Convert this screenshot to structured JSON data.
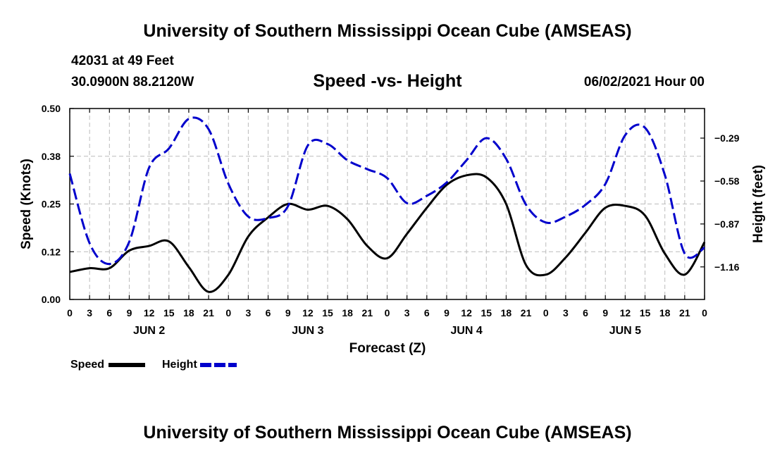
{
  "header": {
    "title": "University of Southern Mississippi Ocean Cube (AMSEAS)",
    "station_line": "42031 at 49 Feet",
    "coords_line": "30.0900N  88.2120W",
    "chart_title": "Speed -vs- Height",
    "date_line": "06/02/2021 Hour 00"
  },
  "footer": {
    "title": "University of Southern Mississippi Ocean Cube (AMSEAS)"
  },
  "legend": {
    "speed_label": "Speed",
    "height_label": "Height"
  },
  "colors": {
    "speed": "#000000",
    "height": "#0000cc",
    "grid": "#bbbbbb"
  },
  "chart_data": {
    "type": "line",
    "title": "Speed -vs- Height",
    "xlabel": "Forecast (Z)",
    "ylabel": "Speed (Knots)",
    "y2label": "Height (feet)",
    "xlim": [
      0,
      96
    ],
    "ylim": [
      0,
      0.5
    ],
    "y2lim": [
      -1.38,
      -0.09
    ],
    "x_ticks": [
      0,
      3,
      6,
      9,
      12,
      15,
      18,
      21,
      24,
      27,
      30,
      33,
      36,
      39,
      42,
      45,
      48,
      51,
      54,
      57,
      60,
      63,
      66,
      69,
      72,
      75,
      78,
      81,
      84,
      87,
      90,
      93,
      96
    ],
    "x_tick_labels": [
      "0",
      "3",
      "6",
      "9",
      "12",
      "15",
      "18",
      "21",
      "0",
      "3",
      "6",
      "9",
      "12",
      "15",
      "18",
      "21",
      "0",
      "3",
      "6",
      "9",
      "12",
      "15",
      "18",
      "21",
      "0",
      "3",
      "6",
      "9",
      "12",
      "15",
      "18",
      "21",
      "0"
    ],
    "day_labels": [
      {
        "x": 12,
        "label": "JUN 2"
      },
      {
        "x": 36,
        "label": "JUN 3"
      },
      {
        "x": 60,
        "label": "JUN 4"
      },
      {
        "x": 84,
        "label": "JUN 5"
      }
    ],
    "y_ticks": [
      0,
      0.125,
      0.25,
      0.375,
      0.5
    ],
    "y_tick_labels": [
      "0.00",
      "0.12",
      "0.25",
      "0.38",
      "0.50"
    ],
    "y2_ticks": [
      -1.16,
      -0.87,
      -0.58,
      -0.29
    ],
    "y2_tick_labels": [
      "-1.16",
      "-0.87",
      "-0.58",
      "-0.29"
    ],
    "series": [
      {
        "name": "Speed",
        "axis": "left",
        "x": [
          0,
          3,
          6,
          9,
          12,
          15,
          18,
          21,
          24,
          27,
          30,
          33,
          36,
          39,
          42,
          45,
          48,
          51,
          54,
          57,
          60,
          63,
          66,
          69,
          72,
          75,
          78,
          81,
          84,
          87,
          90,
          93,
          96
        ],
        "values": [
          0.072,
          0.082,
          0.082,
          0.128,
          0.14,
          0.152,
          0.085,
          0.02,
          0.065,
          0.165,
          0.215,
          0.25,
          0.235,
          0.245,
          0.21,
          0.14,
          0.108,
          0.172,
          0.24,
          0.3,
          0.325,
          0.32,
          0.25,
          0.09,
          0.065,
          0.11,
          0.175,
          0.24,
          0.245,
          0.22,
          0.12,
          0.065,
          0.15
        ]
      },
      {
        "name": "Height",
        "axis": "right",
        "x": [
          0,
          3,
          6,
          9,
          12,
          15,
          18,
          21,
          24,
          27,
          30,
          33,
          36,
          39,
          42,
          45,
          48,
          51,
          54,
          57,
          60,
          63,
          66,
          69,
          72,
          75,
          78,
          81,
          84,
          87,
          90,
          93,
          96
        ],
        "values": [
          -0.53,
          -1.0,
          -1.14,
          -0.99,
          -0.49,
          -0.36,
          -0.16,
          -0.23,
          -0.6,
          -0.82,
          -0.83,
          -0.75,
          -0.34,
          -0.33,
          -0.44,
          -0.5,
          -0.56,
          -0.73,
          -0.68,
          -0.59,
          -0.44,
          -0.29,
          -0.43,
          -0.74,
          -0.86,
          -0.82,
          -0.74,
          -0.6,
          -0.27,
          -0.22,
          -0.54,
          -1.07,
          -1.03
        ]
      }
    ]
  }
}
